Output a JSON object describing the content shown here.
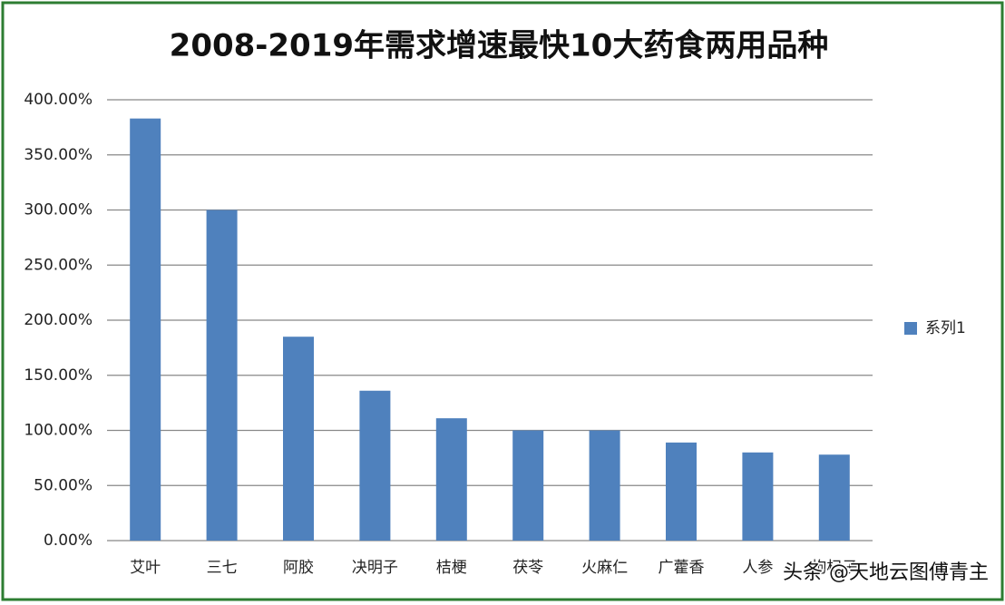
{
  "chart_data": {
    "type": "bar",
    "title": "2008-2019年需求增速最快10大药食两用品种",
    "categories": [
      "艾叶",
      "三七",
      "阿胶",
      "决明子",
      "桔梗",
      "茯苓",
      "火麻仁",
      "广藿香",
      "人参",
      "枸杞子"
    ],
    "series": [
      {
        "name": "系列1",
        "color": "#4f81bd",
        "values": [
          383,
          300,
          185,
          136,
          111,
          100,
          100,
          89,
          80,
          78
        ]
      }
    ],
    "ylim": [
      0,
      400
    ],
    "yticks": [
      {
        "value": 0,
        "label": "0.00%"
      },
      {
        "value": 50,
        "label": "50.00%"
      },
      {
        "value": 100,
        "label": "100.00%"
      },
      {
        "value": 150,
        "label": "150.00%"
      },
      {
        "value": 200,
        "label": "200.00%"
      },
      {
        "value": 250,
        "label": "250.00%"
      },
      {
        "value": 300,
        "label": "300.00%"
      },
      {
        "value": 350,
        "label": "350.00%"
      },
      {
        "value": 400,
        "label": "400.00%"
      }
    ],
    "grid": true,
    "legend": "right",
    "watermark": "头条 @天地云图傅青主"
  }
}
